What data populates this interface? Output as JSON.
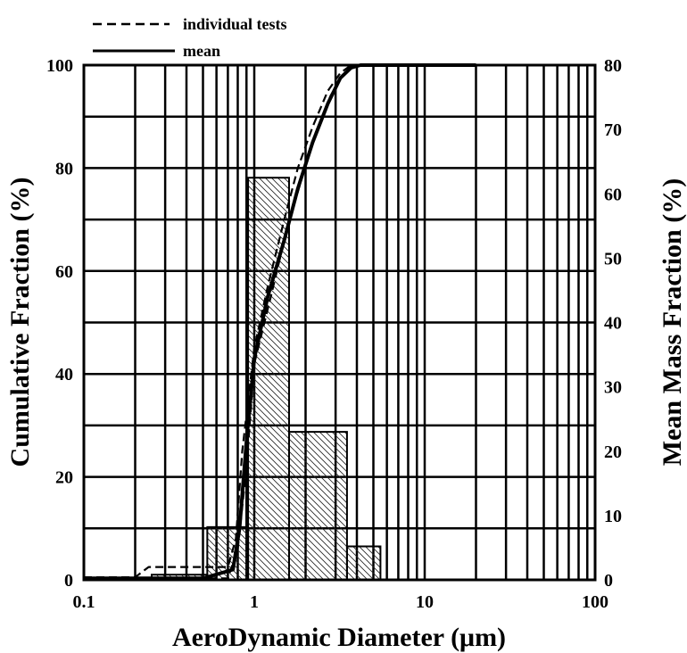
{
  "chart_data": {
    "type": "line",
    "xlabel": "AeroDynamic Diameter (μm)",
    "ylabel": "Cumulative Fraction (%)",
    "y2label": "Mean Mass Fraction (%)",
    "xscale": "log",
    "xlim": [
      0.1,
      100
    ],
    "ylim": [
      0,
      100
    ],
    "y2lim": [
      0,
      80
    ],
    "grid": true,
    "legend_position": "top-left, above plot",
    "x_ticks": [
      "0.1",
      "1",
      "10",
      "100"
    ],
    "y_ticks": [
      "0",
      "20",
      "40",
      "60",
      "80",
      "100"
    ],
    "y2_ticks": [
      "0",
      "10",
      "20",
      "30",
      "40",
      "50",
      "60",
      "70",
      "80"
    ],
    "legend": [
      {
        "label": "individual tests",
        "style": "dashed"
      },
      {
        "label": "mean",
        "style": "solid"
      }
    ],
    "histogram": {
      "axis": "right",
      "pattern": "diagonal hatch",
      "bins": [
        {
          "x0": 0.1,
          "x1": 0.25,
          "value": 0.3
        },
        {
          "x0": 0.25,
          "x1": 0.53,
          "value": 0.8
        },
        {
          "x0": 0.53,
          "x1": 0.92,
          "value": 8.2
        },
        {
          "x0": 0.92,
          "x1": 1.6,
          "value": 62.5
        },
        {
          "x0": 1.6,
          "x1": 3.5,
          "value": 23
        },
        {
          "x0": 3.5,
          "x1": 5.5,
          "value": 5.2
        }
      ]
    },
    "series": [
      {
        "name": "individual tests",
        "style": "dashed",
        "x": [
          0.1,
          0.2,
          0.24,
          0.7,
          0.78,
          0.85,
          1.0,
          1.2,
          1.5,
          1.8,
          2.2,
          2.7,
          3.2,
          3.6,
          4.0,
          10,
          20
        ],
        "y": [
          0.5,
          0.5,
          2.5,
          2.5,
          8,
          25,
          45,
          57,
          70,
          80,
          88,
          95,
          98.5,
          99.7,
          100,
          100,
          100
        ]
      },
      {
        "name": "individual tests",
        "style": "dashed",
        "x": [
          0.1,
          0.7,
          0.8,
          0.9,
          1.0,
          1.25,
          1.55,
          1.9,
          2.3,
          2.8,
          3.3,
          3.8,
          5,
          10,
          20
        ],
        "y": [
          0.3,
          0.3,
          6,
          22,
          42,
          55,
          68,
          78,
          87,
          94,
          98,
          99.8,
          100,
          100,
          100
        ]
      },
      {
        "name": "mean",
        "style": "solid",
        "x": [
          0.1,
          0.5,
          0.75,
          0.82,
          0.9,
          1.0,
          1.2,
          1.5,
          1.8,
          2.2,
          2.7,
          3.2,
          3.7,
          4.2,
          5,
          10,
          20
        ],
        "y": [
          0.3,
          0.3,
          2,
          10,
          27,
          43,
          55,
          66,
          76,
          85,
          92.5,
          97.5,
          99.5,
          100,
          100,
          100,
          100
        ]
      }
    ]
  }
}
